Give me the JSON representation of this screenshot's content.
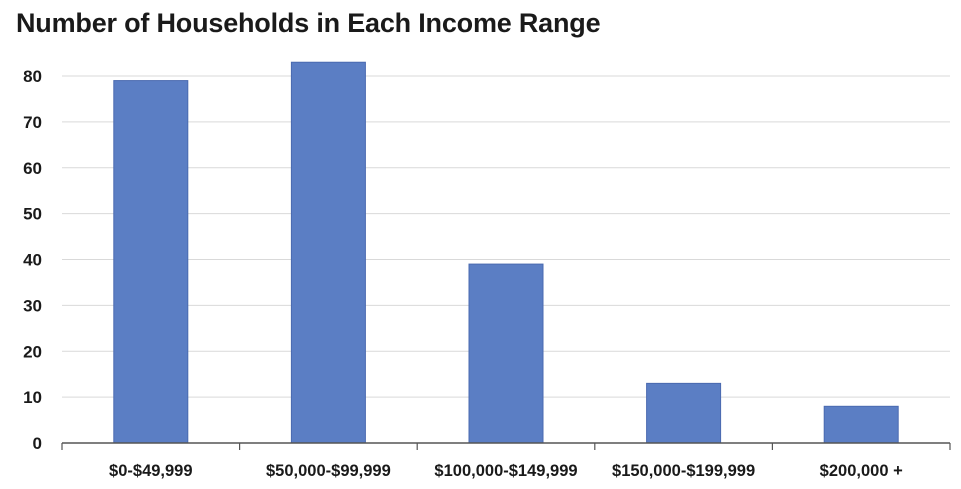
{
  "chart_data": {
    "type": "bar",
    "title": "Number of Households in Each Income Range",
    "xlabel": "",
    "ylabel": "",
    "categories": [
      "$0-$49,999",
      "$50,000-$99,999",
      "$100,000-$149,999",
      "$150,000-$199,999",
      "$200,000 +"
    ],
    "values": [
      79,
      83,
      39,
      13,
      8
    ],
    "ylim": [
      0,
      80
    ],
    "yticks": [
      "0",
      "10",
      "20",
      "30",
      "40",
      "50",
      "60",
      "70",
      "80"
    ],
    "grid": true,
    "legend": "none",
    "colors": {
      "bar": "#5b7ec4",
      "bar_edge": "#4a6ab0",
      "grid": "#d9d9d9",
      "axis": "#555555"
    }
  }
}
